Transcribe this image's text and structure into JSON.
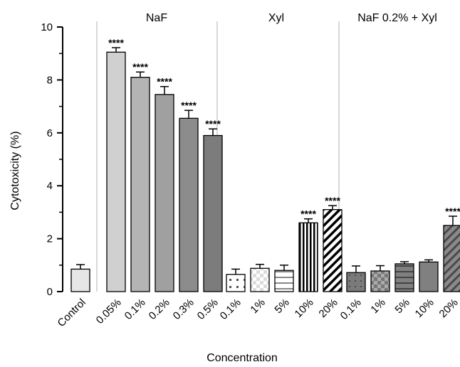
{
  "chart_data": {
    "type": "bar",
    "xlabel": "Concentration",
    "ylabel": "Cytotoxicity (%)",
    "ylim": [
      0,
      10
    ],
    "yticks": [
      "0",
      "2",
      "4",
      "6",
      "8",
      "10"
    ],
    "grid": false,
    "groups": [
      {
        "name": "",
        "bars": [
          {
            "label": "Control",
            "value": 0.85,
            "error": 0.17,
            "sig": "",
            "fill": "#e6e6e6",
            "pattern": "none"
          }
        ]
      },
      {
        "name": "NaF",
        "bars": [
          {
            "label": "0.05%",
            "value": 9.05,
            "error": 0.17,
            "sig": "****",
            "fill": "#d0d0d0",
            "pattern": "none"
          },
          {
            "label": "0.1%",
            "value": 8.1,
            "error": 0.2,
            "sig": "****",
            "fill": "#b4b4b4",
            "pattern": "none"
          },
          {
            "label": "0.2%",
            "value": 7.45,
            "error": 0.3,
            "sig": "****",
            "fill": "#a0a0a0",
            "pattern": "none"
          },
          {
            "label": "0.3%",
            "value": 6.55,
            "error": 0.3,
            "sig": "****",
            "fill": "#8c8c8c",
            "pattern": "none"
          },
          {
            "label": "0.5%",
            "value": 5.9,
            "error": 0.25,
            "sig": "****",
            "fill": "#7c7c7c",
            "pattern": "none"
          }
        ]
      },
      {
        "name": "Xyl",
        "bars": [
          {
            "label": "0.1%",
            "value": 0.65,
            "error": 0.2,
            "sig": "",
            "fill": "#ffffff",
            "pattern": "dots"
          },
          {
            "label": "1%",
            "value": 0.88,
            "error": 0.15,
            "sig": "",
            "fill": "#ffffff",
            "pattern": "checker-light"
          },
          {
            "label": "5%",
            "value": 0.8,
            "error": 0.2,
            "sig": "",
            "fill": "#ffffff",
            "pattern": "hlines"
          },
          {
            "label": "10%",
            "value": 2.6,
            "error": 0.15,
            "sig": "****",
            "fill": "#ffffff",
            "pattern": "vlines"
          },
          {
            "label": "20%",
            "value": 3.1,
            "error": 0.15,
            "sig": "****",
            "fill": "#ffffff",
            "pattern": "diag"
          }
        ]
      },
      {
        "name": "NaF 0.2% + Xyl",
        "bars": [
          {
            "label": "0.1%",
            "value": 0.72,
            "error": 0.25,
            "sig": "",
            "fill": "#808080",
            "pattern": "dots-dark"
          },
          {
            "label": "1%",
            "value": 0.78,
            "error": 0.2,
            "sig": "",
            "fill": "#808080",
            "pattern": "checker-dark"
          },
          {
            "label": "5%",
            "value": 1.05,
            "error": 0.08,
            "sig": "",
            "fill": "#808080",
            "pattern": "hlines-dark"
          },
          {
            "label": "10%",
            "value": 1.12,
            "error": 0.08,
            "sig": "",
            "fill": "#808080",
            "pattern": "none"
          },
          {
            "label": "20%",
            "value": 2.5,
            "error": 0.35,
            "sig": "****",
            "fill": "#808080",
            "pattern": "diag-dark"
          }
        ]
      }
    ],
    "colors": {
      "divider": "#bdbdbd",
      "axis": "#000000",
      "bar_stroke": "#000000"
    }
  }
}
